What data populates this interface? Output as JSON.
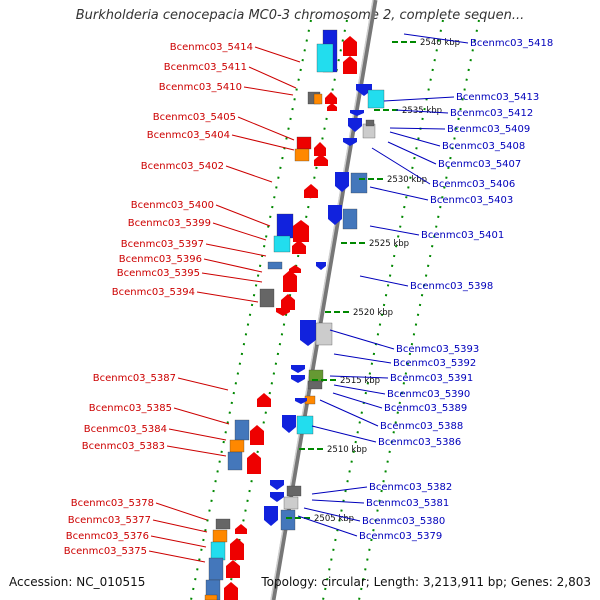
{
  "title": "Burkholderia cenocepacia MC0-3 chromosome 2, complete sequen...",
  "footer": {
    "accession": "Accession: NC_010515",
    "summary": "Topology: circular; Length: 3,213,911 bp; Genes: 2,803"
  },
  "colors": {
    "left_label": "#cc0000",
    "right_label": "#0000bb",
    "backbone": "#999999",
    "tick": "#008800",
    "red": "#ee0000",
    "blue": "#1122dd",
    "cyan": "#22ddee",
    "steel": "#4477bb",
    "orange": "#ff8800",
    "gray": "#666666",
    "light_gray": "#cccccc"
  },
  "scale_labels": [
    "2540 kbp",
    "2535 kbp",
    "2530 kbp",
    "2525 kbp",
    "2520 kbp",
    "2515 kbp",
    "2510 kbp",
    "2505 kbp"
  ],
  "left_labels": [
    "Bcenmc03_5414",
    "Bcenmc03_5411",
    "Bcenmc03_5410",
    "Bcenmc03_5405",
    "Bcenmc03_5404",
    "Bcenmc03_5402",
    "Bcenmc03_5400",
    "Bcenmc03_5399",
    "Bcenmc03_5397",
    "Bcenmc03_5396",
    "Bcenmc03_5395",
    "Bcenmc03_5394",
    "Bcenmc03_5387",
    "Bcenmc03_5385",
    "Bcenmc03_5384",
    "Bcenmc03_5383",
    "Bcenmc03_5378",
    "Bcenmc03_5377",
    "Bcenmc03_5376",
    "Bcenmc03_5375"
  ],
  "right_labels": [
    "Bcenmc03_5418",
    "Bcenmc03_5413",
    "Bcenmc03_5412",
    "Bcenmc03_5409",
    "Bcenmc03_5408",
    "Bcenmc03_5407",
    "Bcenmc03_5406",
    "Bcenmc03_5403",
    "Bcenmc03_5401",
    "Bcenmc03_5398",
    "Bcenmc03_5393",
    "Bcenmc03_5392",
    "Bcenmc03_5391",
    "Bcenmc03_5390",
    "Bcenmc03_5389",
    "Bcenmc03_5388",
    "Bcenmc03_5386",
    "Bcenmc03_5382",
    "Bcenmc03_5381",
    "Bcenmc03_5380",
    "Bcenmc03_5379"
  ]
}
